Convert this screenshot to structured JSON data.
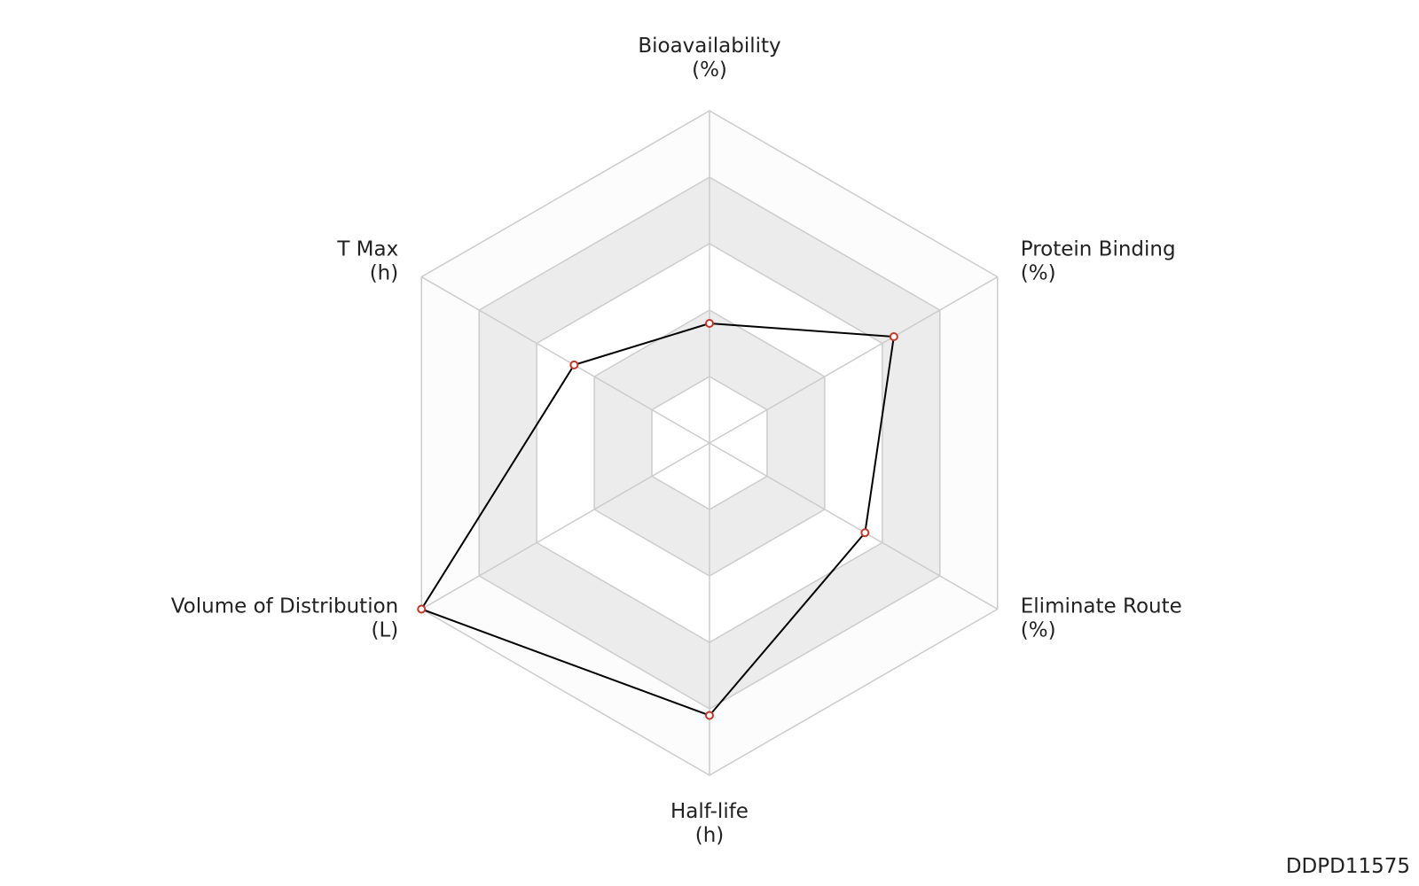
{
  "chart_data": {
    "type": "radar",
    "categories": [
      "Bioavailability",
      "Protein Binding",
      "Eliminate Route",
      "Half-life",
      "Volume of Distribution",
      "T Max"
    ],
    "units": [
      "(%)",
      "(%)",
      "(%)",
      "(h)",
      "(L)",
      "(h)"
    ],
    "values": [
      0.36,
      0.64,
      0.54,
      0.82,
      1.0,
      0.47
    ],
    "rlim": [
      0,
      1
    ],
    "rticks": [
      0.2,
      0.4,
      0.6,
      0.8,
      1.0
    ],
    "color": "#000000",
    "marker_color": "#c0392b",
    "grid": true,
    "watermark": "DDPD11575"
  }
}
